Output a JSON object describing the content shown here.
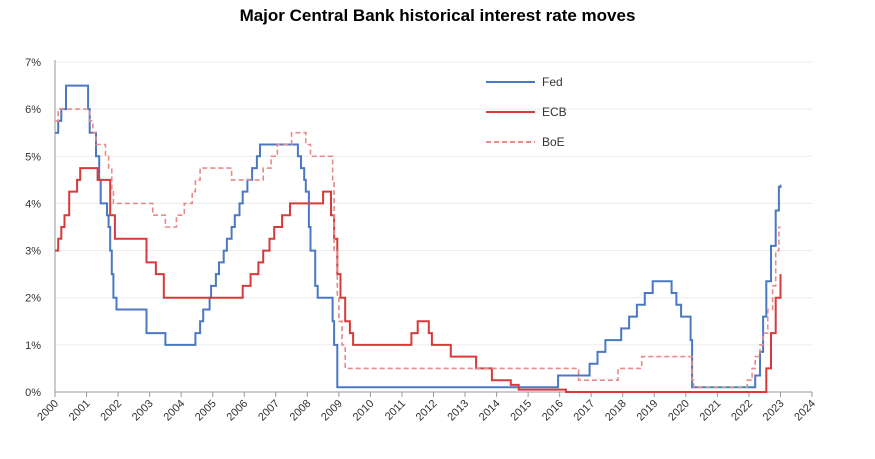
{
  "chart_data": {
    "type": "line",
    "title": "Major Central Bank historical interest rate moves",
    "xlabel": "",
    "ylabel": "",
    "xlim": [
      2000,
      2024
    ],
    "ylim": [
      0,
      7
    ],
    "x_ticks": [
      "2000",
      "2001",
      "2002",
      "2003",
      "2004",
      "2005",
      "2006",
      "2007",
      "2008",
      "2009",
      "2010",
      "2011",
      "2012",
      "2013",
      "2014",
      "2015",
      "2016",
      "2017",
      "2018",
      "2019",
      "2020",
      "2021",
      "2022",
      "2023",
      "2024"
    ],
    "y_ticks": [
      "0%",
      "1%",
      "2%",
      "3%",
      "4%",
      "5%",
      "6%",
      "7%"
    ],
    "grid": "horizontal",
    "legend_position": "top-center",
    "series": [
      {
        "name": "Fed",
        "color": "#4a78c2",
        "style": "solid",
        "points": [
          [
            2000.0,
            5.5
          ],
          [
            2000.1,
            5.75
          ],
          [
            2000.2,
            6.0
          ],
          [
            2000.35,
            6.5
          ],
          [
            2001.0,
            6.5
          ],
          [
            2001.05,
            6.0
          ],
          [
            2001.1,
            5.5
          ],
          [
            2001.3,
            5.0
          ],
          [
            2001.4,
            4.5
          ],
          [
            2001.45,
            4.0
          ],
          [
            2001.65,
            3.75
          ],
          [
            2001.7,
            3.5
          ],
          [
            2001.75,
            3.0
          ],
          [
            2001.8,
            2.5
          ],
          [
            2001.85,
            2.0
          ],
          [
            2001.95,
            1.75
          ],
          [
            2002.9,
            1.25
          ],
          [
            2003.5,
            1.0
          ],
          [
            2004.45,
            1.25
          ],
          [
            2004.6,
            1.5
          ],
          [
            2004.7,
            1.75
          ],
          [
            2004.9,
            2.0
          ],
          [
            2004.95,
            2.25
          ],
          [
            2005.1,
            2.5
          ],
          [
            2005.2,
            2.75
          ],
          [
            2005.35,
            3.0
          ],
          [
            2005.45,
            3.25
          ],
          [
            2005.6,
            3.5
          ],
          [
            2005.7,
            3.75
          ],
          [
            2005.85,
            4.0
          ],
          [
            2005.95,
            4.25
          ],
          [
            2006.1,
            4.5
          ],
          [
            2006.25,
            4.75
          ],
          [
            2006.4,
            5.0
          ],
          [
            2006.5,
            5.25
          ],
          [
            2007.7,
            5.0
          ],
          [
            2007.8,
            4.75
          ],
          [
            2007.9,
            4.5
          ],
          [
            2007.95,
            4.25
          ],
          [
            2008.05,
            3.5
          ],
          [
            2008.1,
            3.0
          ],
          [
            2008.25,
            2.25
          ],
          [
            2008.33,
            2.0
          ],
          [
            2008.8,
            1.5
          ],
          [
            2008.85,
            1.0
          ],
          [
            2008.95,
            0.1
          ],
          [
            2015.95,
            0.35
          ],
          [
            2016.95,
            0.6
          ],
          [
            2017.2,
            0.85
          ],
          [
            2017.45,
            1.1
          ],
          [
            2017.95,
            1.35
          ],
          [
            2018.2,
            1.6
          ],
          [
            2018.45,
            1.85
          ],
          [
            2018.7,
            2.1
          ],
          [
            2018.95,
            2.35
          ],
          [
            2019.55,
            2.1
          ],
          [
            2019.7,
            1.85
          ],
          [
            2019.85,
            1.6
          ],
          [
            2020.15,
            1.1
          ],
          [
            2020.2,
            0.1
          ],
          [
            2022.2,
            0.35
          ],
          [
            2022.35,
            0.85
          ],
          [
            2022.45,
            1.6
          ],
          [
            2022.55,
            2.35
          ],
          [
            2022.7,
            3.1
          ],
          [
            2022.85,
            3.85
          ],
          [
            2022.95,
            4.35
          ],
          [
            2023.0,
            4.4
          ]
        ]
      },
      {
        "name": "ECB",
        "color": "#d63a3a",
        "style": "solid",
        "points": [
          [
            2000.0,
            3.0
          ],
          [
            2000.1,
            3.25
          ],
          [
            2000.2,
            3.5
          ],
          [
            2000.3,
            3.75
          ],
          [
            2000.45,
            4.25
          ],
          [
            2000.7,
            4.5
          ],
          [
            2000.8,
            4.75
          ],
          [
            2001.35,
            4.5
          ],
          [
            2001.75,
            3.75
          ],
          [
            2001.9,
            3.25
          ],
          [
            2002.9,
            2.75
          ],
          [
            2003.2,
            2.5
          ],
          [
            2003.45,
            2.0
          ],
          [
            2005.95,
            2.25
          ],
          [
            2006.2,
            2.5
          ],
          [
            2006.45,
            2.75
          ],
          [
            2006.6,
            3.0
          ],
          [
            2006.8,
            3.25
          ],
          [
            2006.95,
            3.5
          ],
          [
            2007.2,
            3.75
          ],
          [
            2007.45,
            4.0
          ],
          [
            2008.5,
            4.25
          ],
          [
            2008.75,
            3.75
          ],
          [
            2008.85,
            3.25
          ],
          [
            2008.95,
            2.5
          ],
          [
            2009.05,
            2.0
          ],
          [
            2009.2,
            1.5
          ],
          [
            2009.35,
            1.25
          ],
          [
            2009.45,
            1.0
          ],
          [
            2011.3,
            1.25
          ],
          [
            2011.5,
            1.5
          ],
          [
            2011.85,
            1.25
          ],
          [
            2011.95,
            1.0
          ],
          [
            2012.55,
            0.75
          ],
          [
            2013.35,
            0.5
          ],
          [
            2013.85,
            0.25
          ],
          [
            2014.45,
            0.15
          ],
          [
            2014.7,
            0.05
          ],
          [
            2016.2,
            0.0
          ],
          [
            2022.55,
            0.5
          ],
          [
            2022.7,
            1.25
          ],
          [
            2022.85,
            2.0
          ],
          [
            2023.0,
            2.5
          ]
        ]
      },
      {
        "name": "BoE",
        "color": "#e88a8a",
        "style": "dashed",
        "points": [
          [
            2000.0,
            5.75
          ],
          [
            2000.1,
            6.0
          ],
          [
            2001.1,
            5.75
          ],
          [
            2001.2,
            5.5
          ],
          [
            2001.3,
            5.25
          ],
          [
            2001.6,
            5.0
          ],
          [
            2001.7,
            4.75
          ],
          [
            2001.8,
            4.25
          ],
          [
            2001.85,
            4.0
          ],
          [
            2003.1,
            3.75
          ],
          [
            2003.5,
            3.5
          ],
          [
            2003.85,
            3.75
          ],
          [
            2004.1,
            4.0
          ],
          [
            2004.35,
            4.25
          ],
          [
            2004.45,
            4.5
          ],
          [
            2004.6,
            4.75
          ],
          [
            2005.6,
            4.5
          ],
          [
            2006.6,
            4.75
          ],
          [
            2006.85,
            5.0
          ],
          [
            2007.05,
            5.25
          ],
          [
            2007.5,
            5.5
          ],
          [
            2007.95,
            5.25
          ],
          [
            2008.1,
            5.0
          ],
          [
            2008.8,
            4.5
          ],
          [
            2008.85,
            3.0
          ],
          [
            2008.95,
            2.0
          ],
          [
            2009.0,
            1.5
          ],
          [
            2009.1,
            1.0
          ],
          [
            2009.2,
            0.5
          ],
          [
            2016.6,
            0.25
          ],
          [
            2017.85,
            0.5
          ],
          [
            2018.6,
            0.75
          ],
          [
            2020.2,
            0.25
          ],
          [
            2020.25,
            0.1
          ],
          [
            2021.95,
            0.25
          ],
          [
            2022.1,
            0.5
          ],
          [
            2022.2,
            0.75
          ],
          [
            2022.35,
            1.0
          ],
          [
            2022.45,
            1.25
          ],
          [
            2022.6,
            1.75
          ],
          [
            2022.75,
            2.25
          ],
          [
            2022.85,
            3.0
          ],
          [
            2022.95,
            3.5
          ],
          [
            2023.0,
            3.5
          ]
        ]
      }
    ]
  }
}
